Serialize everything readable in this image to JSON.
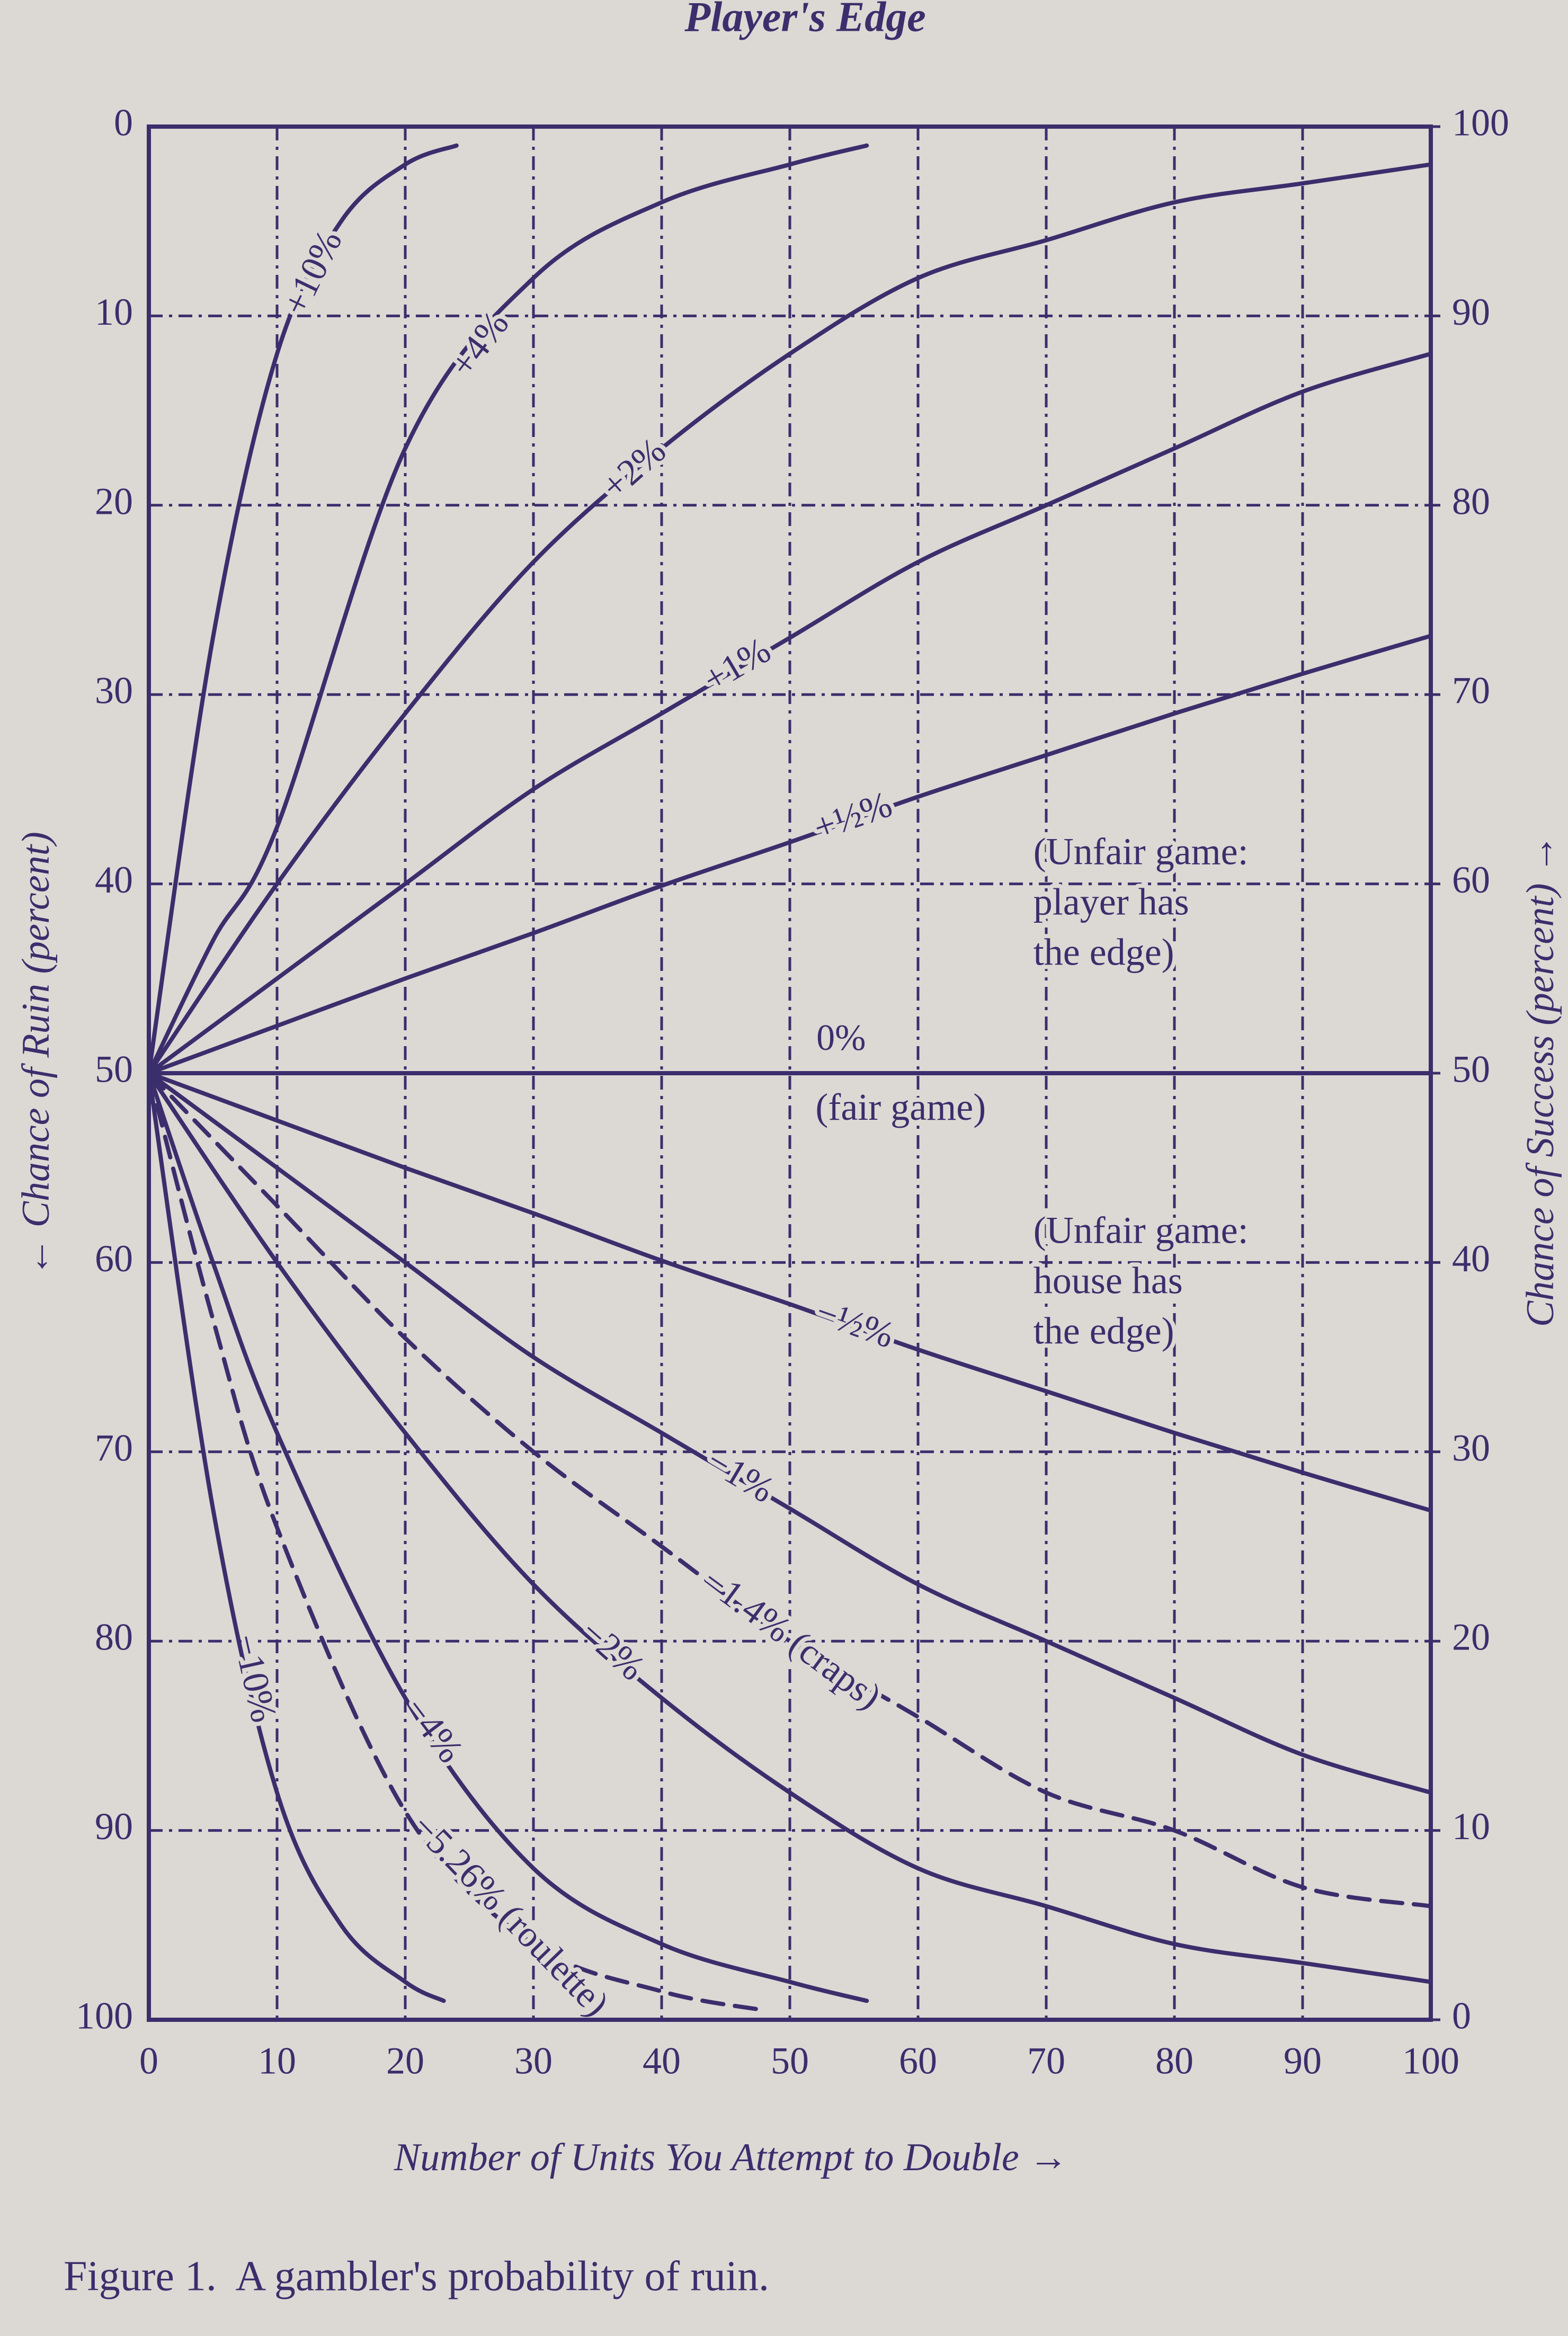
{
  "chart_data": {
    "type": "line",
    "title": "Player's Edge",
    "x_label": "Number of Units You Attempt to Double →",
    "y_label": "← Chance of Ruin (percent)",
    "y2_label": "Chance of Success (percent) →",
    "caption": "Figure 1.  A gambler's probability of ruin.",
    "xlim": [
      0,
      100
    ],
    "xticks": [
      0,
      10,
      20,
      30,
      40,
      50,
      60,
      70,
      80,
      90,
      100
    ],
    "ylim": [
      100,
      0
    ],
    "yticks": [
      0,
      10,
      20,
      30,
      40,
      50,
      60,
      70,
      80,
      90,
      100
    ],
    "y2lim": [
      0,
      100
    ],
    "y2ticks": [
      0,
      10,
      20,
      30,
      40,
      50,
      60,
      70,
      80,
      90,
      100
    ],
    "grid": true,
    "color": "#3b2e6c",
    "series": [
      {
        "name": "+10%",
        "color": "#3b2e6c",
        "dash": false,
        "x": [
          0,
          5,
          10,
          15,
          20,
          24
        ],
        "values": [
          50,
          27,
          12,
          5,
          2,
          1
        ]
      },
      {
        "name": "+4%",
        "color": "#3b2e6c",
        "dash": false,
        "x": [
          0,
          5,
          10,
          20,
          30,
          40,
          50,
          56
        ],
        "values": [
          50,
          43,
          37,
          17,
          8,
          4,
          2,
          1
        ]
      },
      {
        "name": "+2%",
        "color": "#3b2e6c",
        "dash": false,
        "x": [
          0,
          10,
          20,
          30,
          40,
          50,
          60,
          70,
          80,
          90,
          100
        ],
        "values": [
          50,
          40,
          31,
          23,
          17,
          12,
          8,
          6,
          4,
          3,
          2
        ]
      },
      {
        "name": "+1%",
        "color": "#3b2e6c",
        "dash": false,
        "x": [
          0,
          10,
          20,
          30,
          40,
          50,
          60,
          70,
          80,
          90,
          100
        ],
        "values": [
          50,
          45,
          40,
          35,
          31,
          27,
          23,
          20,
          17,
          14,
          12
        ]
      },
      {
        "name": "+½%",
        "color": "#3b2e6c",
        "dash": false,
        "x": [
          0,
          10,
          20,
          30,
          40,
          50,
          60,
          70,
          80,
          90,
          100
        ],
        "values": [
          50,
          47.5,
          45,
          42.6,
          40.1,
          37.8,
          35.4,
          33.2,
          31,
          28.9,
          26.9
        ]
      },
      {
        "name": "0%",
        "color": "#3b2e6c",
        "dash": false,
        "x": [
          0,
          100
        ],
        "values": [
          50,
          50
        ]
      },
      {
        "name": "−½%",
        "color": "#3b2e6c",
        "dash": false,
        "x": [
          0,
          10,
          20,
          30,
          40,
          50,
          60,
          70,
          80,
          90,
          100
        ],
        "values": [
          50,
          52.5,
          55,
          57.4,
          59.9,
          62.2,
          64.6,
          66.8,
          69,
          71.1,
          73.1
        ]
      },
      {
        "name": "−1%",
        "color": "#3b2e6c",
        "dash": false,
        "x": [
          0,
          10,
          20,
          30,
          40,
          50,
          60,
          70,
          80,
          90,
          100
        ],
        "values": [
          50,
          55,
          60,
          65,
          69,
          73,
          77,
          80,
          83,
          86,
          88
        ]
      },
      {
        "name": "−1.4% (craps)",
        "color": "#3b2e6c",
        "dash": true,
        "x": [
          0,
          10,
          20,
          30,
          40,
          50,
          60,
          70,
          80,
          90,
          100
        ],
        "values": [
          50,
          57,
          64,
          70,
          75,
          80,
          84,
          88,
          90,
          93,
          94
        ]
      },
      {
        "name": "−2%",
        "color": "#3b2e6c",
        "dash": false,
        "x": [
          0,
          10,
          20,
          30,
          40,
          50,
          60,
          70,
          80,
          90,
          100
        ],
        "values": [
          50,
          60,
          69,
          77,
          83,
          88,
          92,
          94,
          96,
          97,
          98
        ]
      },
      {
        "name": "−4%",
        "color": "#3b2e6c",
        "dash": false,
        "x": [
          0,
          5,
          10,
          20,
          30,
          40,
          50,
          56
        ],
        "values": [
          50,
          60,
          69,
          83,
          92,
          96,
          98,
          99
        ]
      },
      {
        "name": "−5.26% (roulette)",
        "color": "#3b2e6c",
        "dash": true,
        "x": [
          0,
          5,
          10,
          20,
          30,
          40,
          48
        ],
        "values": [
          50,
          63,
          74,
          89,
          96,
          98.5,
          99.5
        ]
      },
      {
        "name": "−10%",
        "color": "#3b2e6c",
        "dash": false,
        "x": [
          0,
          5,
          10,
          15,
          20,
          23
        ],
        "values": [
          50,
          73,
          88,
          95,
          98,
          99
        ]
      }
    ],
    "annotations": [
      [
        "(Unfair game:",
        "player has",
        "the edge)"
      ],
      [
        "(fair game)"
      ],
      [
        "(Unfair game:",
        "house has",
        "the edge)"
      ]
    ]
  }
}
